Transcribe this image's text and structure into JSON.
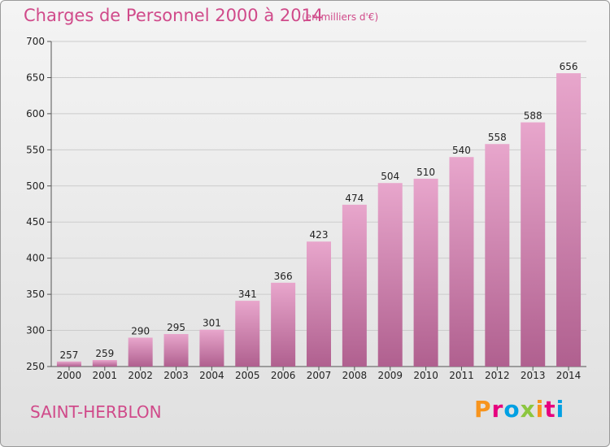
{
  "header": {
    "title": "Charges de Personnel 2000 à 2014",
    "subtitle": "(en milliers d'€)"
  },
  "footer": {
    "commune": "SAINT-HERBLON",
    "logo_text": "Proxiti",
    "logo_colors": [
      "#f7941d",
      "#e6007e",
      "#00a0e3",
      "#8cc63f",
      "#f7941d",
      "#e6007e",
      "#00a0e3"
    ]
  },
  "colors": {
    "bar_top": "#e8a6cc",
    "bar_bottom": "#b0608f",
    "accent": "#d04a8a",
    "grid": "#cccccc"
  },
  "chart_data": {
    "type": "bar",
    "title": "Charges de Personnel 2000 à 2014",
    "xlabel": "",
    "ylabel": "",
    "ylim": [
      250,
      700
    ],
    "yticks": [
      250,
      300,
      350,
      400,
      450,
      500,
      550,
      600,
      650,
      700
    ],
    "grid": true,
    "categories": [
      "2000",
      "2001",
      "2002",
      "2003",
      "2004",
      "2005",
      "2006",
      "2007",
      "2008",
      "2009",
      "2010",
      "2011",
      "2012",
      "2013",
      "2014"
    ],
    "values": [
      257,
      259,
      290,
      295,
      301,
      341,
      366,
      423,
      474,
      504,
      510,
      540,
      558,
      588,
      656
    ]
  }
}
